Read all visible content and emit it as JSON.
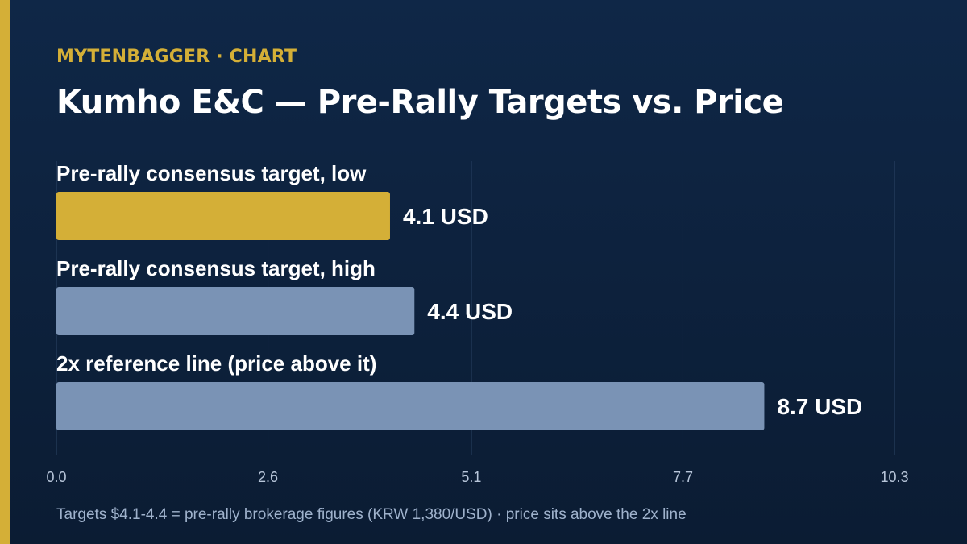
{
  "header": {
    "eyebrow": "MYTENBAGGER · CHART",
    "title": "Kumho E&C — Pre-Rally Targets vs. Price"
  },
  "footnote": "Targets $4.1-4.4 = pre-rally brokerage figures (KRW 1,380/USD) · price sits above the 2x line",
  "colors": {
    "accent": "#d4af37",
    "bar_secondary": "#7a93b5",
    "grid": "#2c4566",
    "tick_text": "#b8c6da"
  },
  "chart_data": {
    "type": "bar",
    "orientation": "horizontal",
    "categories": [
      "Pre-rally consensus target, low",
      "Pre-rally consensus target, high",
      "2x reference line (price above it)"
    ],
    "values": [
      4.1,
      4.4,
      8.7
    ],
    "value_labels": [
      "4.1 USD",
      "4.4 USD",
      "8.7 USD"
    ],
    "bar_colors": [
      "#d4af37",
      "#7a93b5",
      "#7a93b5"
    ],
    "xlim": [
      0,
      10.3
    ],
    "xticks": [
      0,
      2.6,
      5.1,
      7.7,
      10.3
    ],
    "xtick_labels": [
      "0.0",
      "2.6",
      "5.1",
      "7.7",
      "10.3"
    ],
    "grid": true
  }
}
